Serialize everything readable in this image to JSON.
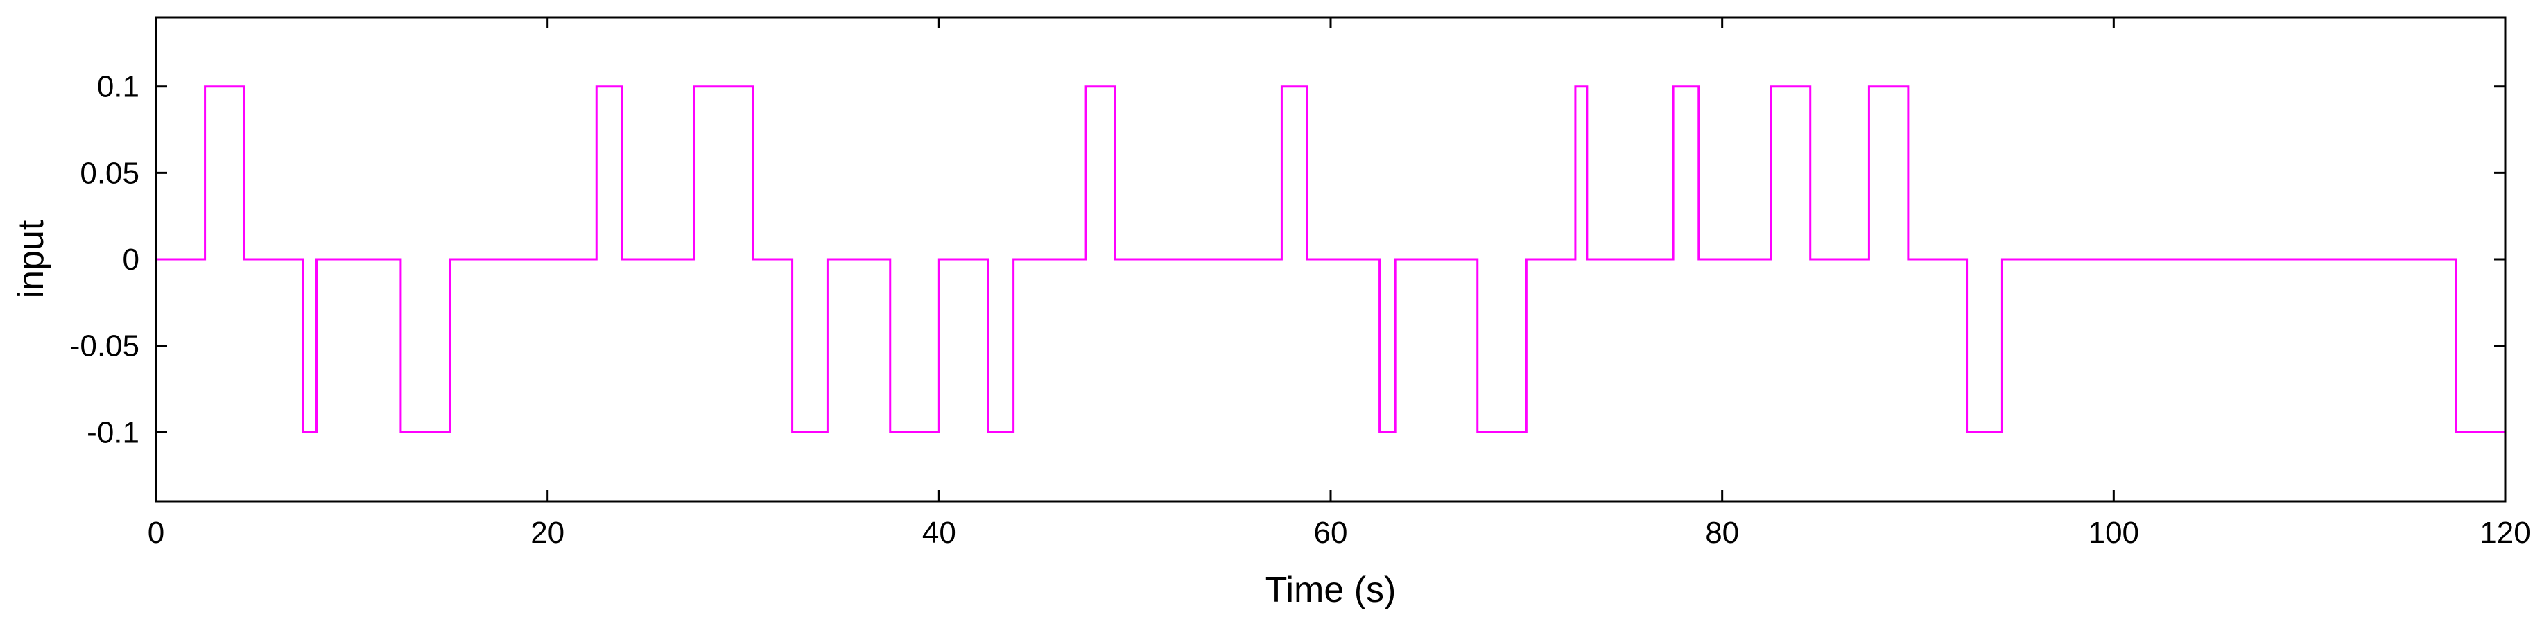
{
  "chart_data": {
    "type": "line",
    "style": "step",
    "xlabel": "Time (s)",
    "ylabel": "input",
    "xlim": [
      0,
      120
    ],
    "ylim": [
      -0.14,
      0.14
    ],
    "xticks": [
      0,
      20,
      40,
      60,
      80,
      100,
      120
    ],
    "yticks": [
      -0.1,
      -0.05,
      0,
      0.05,
      0.1
    ],
    "xtick_labels": [
      "0",
      "20",
      "40",
      "60",
      "80",
      "100",
      "120"
    ],
    "ytick_labels": [
      "-0.1",
      "-0.05",
      "0",
      "0.05",
      "0.1"
    ],
    "grid": false,
    "legend": "none",
    "line_color": "#ff00ff",
    "series": [
      {
        "x": [
          0,
          2.5,
          4.5,
          7.5,
          8.2,
          12.5,
          15,
          22.5,
          23.8,
          27.5,
          30.5,
          32.5,
          34.3,
          37.5,
          40,
          42.5,
          43.8,
          47.5,
          49,
          57.5,
          58.8,
          62.5,
          63.3,
          67.5,
          70,
          72.5,
          73.1,
          77.5,
          78.8,
          82.5,
          84.5,
          87.5,
          89.5,
          92.5,
          94.3,
          117.5,
          120
        ],
        "y": [
          0,
          0.1,
          0,
          -0.1,
          0,
          -0.1,
          0,
          0.1,
          0,
          0.1,
          0,
          -0.1,
          0,
          -0.1,
          0,
          -0.1,
          0,
          0.1,
          0,
          0.1,
          0,
          -0.1,
          0,
          -0.1,
          0,
          0.1,
          0,
          0.1,
          0,
          0.1,
          0,
          0.1,
          0,
          -0.1,
          0,
          -0.1,
          -0.1
        ]
      }
    ]
  }
}
